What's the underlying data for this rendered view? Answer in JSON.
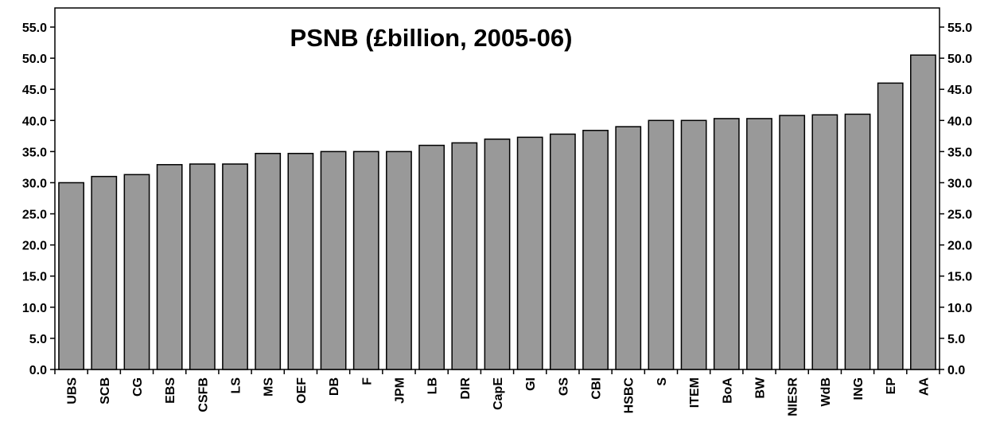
{
  "chart_data": {
    "type": "bar",
    "title": "PSNB (£billion, 2005-06)",
    "xlabel": "",
    "ylabel": "",
    "ylim": [
      0,
      55
    ],
    "y_ticks": [
      "0.0",
      "5.0",
      "10.0",
      "15.0",
      "20.0",
      "25.0",
      "30.0",
      "35.0",
      "40.0",
      "45.0",
      "50.0",
      "55.0"
    ],
    "y_tick_values": [
      0,
      5,
      10,
      15,
      20,
      25,
      30,
      35,
      40,
      45,
      50,
      55
    ],
    "y_axis_sides": "left and right",
    "grid": false,
    "legend": "none",
    "categories": [
      "UBS",
      "SCB",
      "CG",
      "EBS",
      "CSFB",
      "LS",
      "MS",
      "OEF",
      "DB",
      "F",
      "JPM",
      "LB",
      "DIR",
      "CapE",
      "GI",
      "GS",
      "CBI",
      "HSBC",
      "S",
      "ITEM",
      "BoA",
      "BW",
      "NIESR",
      "WdB",
      "ING",
      "EP",
      "AA"
    ],
    "values": [
      30.0,
      31.0,
      31.3,
      32.9,
      33.0,
      33.0,
      34.7,
      34.7,
      35.0,
      35.0,
      35.0,
      36.0,
      36.4,
      37.0,
      37.3,
      37.8,
      38.4,
      39.0,
      40.0,
      40.0,
      40.3,
      40.3,
      40.8,
      40.9,
      41.0,
      46.0,
      50.5
    ],
    "colors": {
      "bar_fill": "#999999",
      "bar_stroke": "#000000",
      "axis": "#000000"
    }
  }
}
